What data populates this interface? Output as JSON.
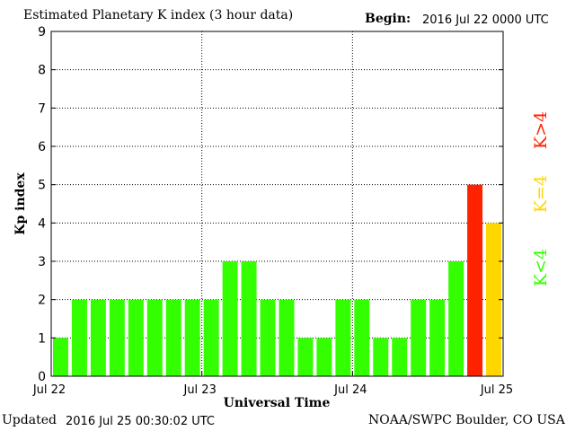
{
  "header": {
    "title": "Estimated Planetary K index (3 hour data)",
    "begin_label": "Begin:",
    "begin_value": "2016 Jul 22 0000 UTC"
  },
  "footer": {
    "updated_label": "Updated",
    "updated_value": "2016 Jul 25 00:30:02 UTC",
    "credit": "NOAA/SWPC Boulder, CO USA"
  },
  "colors": {
    "low": "#33ff00",
    "moderate": "#ffd700",
    "high": "#ff2200"
  },
  "chart_data": {
    "type": "bar",
    "xlabel": "Universal Time",
    "ylabel": "Kp index",
    "ylim": [
      0,
      9
    ],
    "yticks": [
      "0",
      "1",
      "2",
      "3",
      "4",
      "5",
      "6",
      "7",
      "8",
      "9"
    ],
    "xtick_labels": [
      "Jul 22",
      "Jul 23",
      "Jul 24",
      "Jul 25"
    ],
    "grid": true,
    "values": [
      1,
      2,
      2,
      2,
      2,
      2,
      2,
      2,
      2,
      3,
      3,
      2,
      2,
      1,
      1,
      2,
      2,
      1,
      1,
      2,
      2,
      3,
      5,
      4
    ],
    "legend": [
      {
        "label": "K<4",
        "color": "#33ff00"
      },
      {
        "label": "K=4",
        "color": "#ffd700"
      },
      {
        "label": "K>4",
        "color": "#ff2200"
      }
    ]
  }
}
